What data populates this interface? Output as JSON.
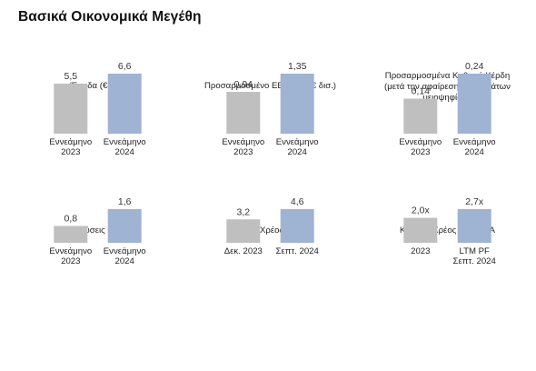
{
  "page": {
    "title": "Βασικά Οικονομικά Μεγέθη"
  },
  "colors": {
    "bar_2023": "#bfbfbf",
    "bar_2024": "#9fb3d3"
  },
  "chart_data": [
    {
      "type": "bar",
      "title": "Έσοδα (€δισ.)",
      "categories": [
        [
          "Εννεάμηνο",
          "2023"
        ],
        [
          "Εννεάμηνο",
          "2024"
        ]
      ],
      "values": [
        5.5,
        6.6
      ],
      "value_labels": [
        "5,5",
        "6,6"
      ]
    },
    {
      "type": "bar",
      "title": "Προσαρμοσμένο EBITDA¹ (€ δισ.)",
      "categories": [
        [
          "Εννεάμηνο",
          "2023"
        ],
        [
          "Εννεάμηνο",
          "2024"
        ]
      ],
      "values": [
        0.94,
        1.35
      ],
      "value_labels": [
        "0,94",
        "1,35"
      ]
    },
    {
      "type": "bar",
      "title": [
        "Προσαρμοσμένα Καθαρά Κέρδη",
        "(μετά την αφαίρεση δικαιωμάτων",
        "μειοψηφίας)¹"
      ],
      "categories": [
        [
          "Εννεάμηνο",
          "2023"
        ],
        [
          "Εννεάμηνο",
          "2024"
        ]
      ],
      "values": [
        0.14,
        0.24
      ],
      "value_labels": [
        "0,14",
        "0,24"
      ]
    },
    {
      "type": "bar",
      "title": "Επενδύσεις (€ δισ.)",
      "categories": [
        [
          "Εννεάμηνο",
          "2023"
        ],
        [
          "Εννεάμηνο",
          "2024"
        ]
      ],
      "values": [
        0.8,
        1.6
      ],
      "value_labels": [
        "0,8",
        "1,6"
      ]
    },
    {
      "type": "bar",
      "title": "Καθαρό Χρέος (€ δισ.)",
      "categories": [
        [
          "Δεκ. 2023"
        ],
        [
          "Σεπτ. 2024"
        ]
      ],
      "values": [
        3.2,
        4.6
      ],
      "value_labels": [
        "3,2",
        "4,6"
      ]
    },
    {
      "type": "bar",
      "title": "Καθαρό Χρέος / EBITDA",
      "categories": [
        [
          "2023"
        ],
        [
          "LTM PF",
          "Σεπτ. 2024"
        ]
      ],
      "values": [
        2.0,
        2.7
      ],
      "value_labels": [
        "2,0x",
        "2,7x"
      ]
    }
  ]
}
